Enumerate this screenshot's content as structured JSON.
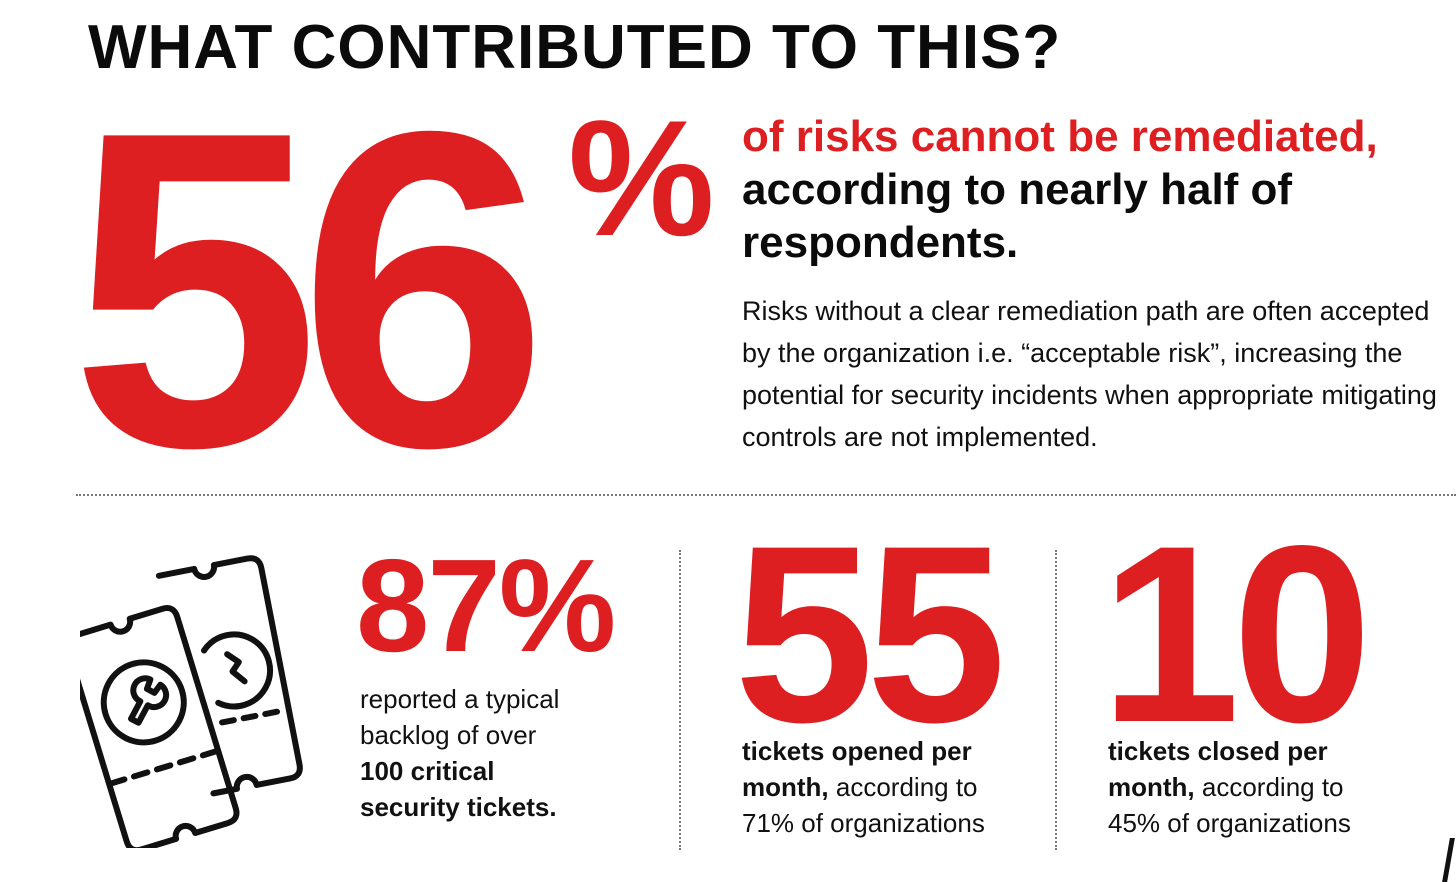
{
  "title": "WHAT CONTRIBUTED TO THIS?",
  "hero": {
    "number": "56",
    "percent_sign": "%",
    "headline_red": "of risks cannot be remediated,",
    "headline_black": " according to nearly half of respondents.",
    "description": "Risks without a clear remediation path are often accepted by the organization i.e. “acceptable risk”, increasing the potential for security incidents when appropriate mitigating controls are not implemented."
  },
  "stats": [
    {
      "number": "87%",
      "line1": "reported a typical",
      "line2": "backlog of over",
      "bold1": "100 critical",
      "bold2": "security tickets."
    },
    {
      "number": "55",
      "bold1": "tickets opened per",
      "bold2": "month,",
      "text2": " according to",
      "text3": "71% of organizations"
    },
    {
      "number": "10",
      "bold1": "tickets closed per",
      "bold2": "month,",
      "text2": " according to",
      "text3": "45% of organizations"
    }
  ],
  "icon": "support-tickets-icon",
  "colors": {
    "accent": "#dd1f22",
    "text": "#111111",
    "background": "#ffffff"
  }
}
